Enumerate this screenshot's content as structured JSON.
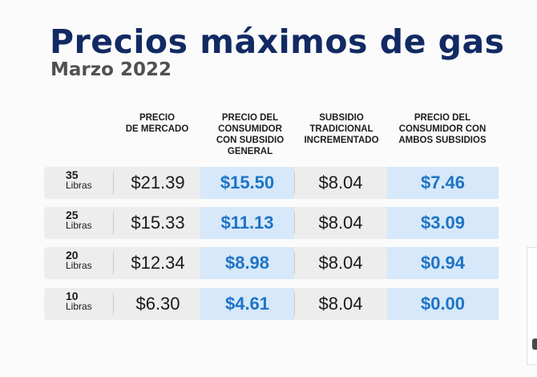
{
  "title": "Precios máximos de gas",
  "subtitle": "Marzo 2022",
  "headers": [
    "PRECIO\nDE MERCADO",
    "PRECIO DEL\nCONSUMIDOR\nCON SUBSIDIO\nGENERAL",
    "SUBSIDIO\nTRADICIONAL\nINCREMENTADO",
    "PRECIO DEL\nCONSUMIDOR CON\nAMBOS SUBSIDIOS"
  ],
  "rows": [
    {
      "size": "35",
      "unit": "Libras",
      "market": "$21.39",
      "general": "$15.50",
      "subsidy": "$8.04",
      "both": "$7.46"
    },
    {
      "size": "25",
      "unit": "Libras",
      "market": "$15.33",
      "general": "$11.13",
      "subsidy": "$8.04",
      "both": "$3.09"
    },
    {
      "size": "20",
      "unit": "Libras",
      "market": "$12.34",
      "general": "$8.98",
      "subsidy": "$8.04",
      "both": "$0.94"
    },
    {
      "size": "10",
      "unit": "Libras",
      "market": "$6.30",
      "general": "$4.61",
      "subsidy": "$8.04",
      "both": "$0.00"
    }
  ],
  "colors": {
    "title": "#122a63",
    "highlight_text": "#1e74c6",
    "highlight_bg": "#d6e8f9",
    "row_bg": "#ededed"
  }
}
